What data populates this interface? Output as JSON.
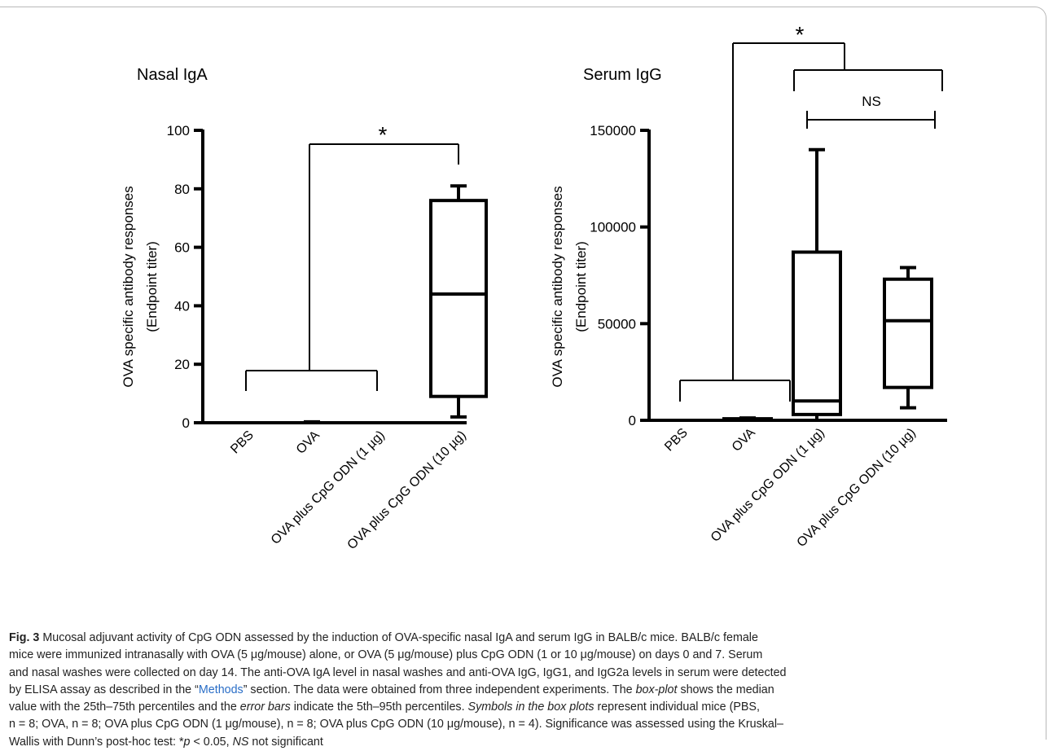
{
  "chart_data": [
    {
      "type": "box",
      "title": "Nasal IgA",
      "ylabel": [
        "OVA specific antibody responses",
        "(Endpoint titer)"
      ],
      "ylim": [
        0,
        100
      ],
      "yticks": [
        0,
        20,
        40,
        60,
        80,
        100
      ],
      "categories": [
        "PBS",
        "OVA",
        "OVA plus CpG ODN (1 µg)",
        "OVA plus CpG ODN (10 µg)"
      ],
      "boxes": [
        {
          "category": "PBS",
          "whisker_low": 0,
          "q1": 0,
          "median": 0,
          "q3": 0,
          "whisker_high": 0
        },
        {
          "category": "OVA",
          "whisker_low": 0,
          "q1": 0,
          "median": 0,
          "q3": 0,
          "whisker_high": 0.3
        },
        {
          "category": "OVA plus CpG ODN (1 µg)",
          "whisker_low": 0,
          "q1": 0,
          "median": 0,
          "q3": 0,
          "whisker_high": 0
        },
        {
          "category": "OVA plus CpG ODN (10 µg)",
          "whisker_low": 2,
          "q1": 9,
          "median": 44,
          "q3": 76,
          "whisker_high": 81
        }
      ],
      "annotations": [
        {
          "from": [
            0,
            2
          ],
          "to": [
            3
          ],
          "label": "*"
        }
      ]
    },
    {
      "type": "box",
      "title": "Serum IgG",
      "ylabel": [
        "OVA specific antibody responses",
        "(Endpoint titer)"
      ],
      "ylim": [
        0,
        150000
      ],
      "yticks": [
        0,
        50000,
        100000,
        150000
      ],
      "categories": [
        "PBS",
        "OVA",
        "OVA plus CpG ODN (1 µg)",
        "OVA plus CpG ODN (10 µg)"
      ],
      "boxes": [
        {
          "category": "PBS",
          "whisker_low": 0,
          "q1": 0,
          "median": 0,
          "q3": 0,
          "whisker_high": 0
        },
        {
          "category": "OVA",
          "whisker_low": 0,
          "q1": 200,
          "median": 500,
          "q3": 800,
          "whisker_high": 1200
        },
        {
          "category": "OVA plus CpG ODN (1 µg)",
          "whisker_low": 0,
          "q1": 3000,
          "median": 10000,
          "q3": 87000,
          "whisker_high": 140000
        },
        {
          "category": "OVA plus CpG ODN (10 µg)",
          "whisker_low": 6500,
          "q1": 17000,
          "median": 51500,
          "q3": 73000,
          "whisker_high": 79000
        }
      ],
      "annotations": [
        {
          "from": [
            0,
            1
          ],
          "to": [
            2,
            3
          ],
          "label": "*"
        },
        {
          "from": [
            2
          ],
          "to": [
            3
          ],
          "label": "NS"
        }
      ]
    }
  ],
  "caption": {
    "fig_label": "Fig. 3",
    "lines": [
      [
        {
          "t": "Mucosal adjuvant activity of CpG ODN assessed by the induction of OVA-specific nasal IgA and serum IgG in BALB/c mice. BALB/c female"
        }
      ],
      [
        {
          "t": "mice were immunized intranasally with OVA (5 μg/mouse) alone, or OVA (5 μg/mouse) plus CpG ODN (1 or 10 μg/mouse) on days 0 and 7. Serum"
        }
      ],
      [
        {
          "t": "and nasal washes were collected on day 14. The anti-OVA IgA level in nasal washes and anti-OVA IgG, IgG1, and IgG2a levels in serum were detected"
        }
      ],
      [
        {
          "t": "by ELISA assay as described in the “"
        },
        {
          "t": "Methods",
          "s": "link"
        },
        {
          "t": "” section. The data were obtained from three independent experiments. The "
        },
        {
          "t": "box-plot",
          "s": "i"
        },
        {
          "t": " shows the median"
        }
      ],
      [
        {
          "t": "value with the 25th–75th percentiles and the "
        },
        {
          "t": "error bars",
          "s": "i"
        },
        {
          "t": " indicate the 5th–95th percentiles. "
        },
        {
          "t": "Symbols in the box plots",
          "s": "i"
        },
        {
          "t": " represent individual mice (PBS,"
        }
      ],
      [
        {
          "t": "n = 8; OVA, n = 8; OVA plus CpG ODN (1 μg/mouse), n = 8; OVA plus CpG ODN (10 μg/mouse), n = 4). Significance was assessed using the Kruskal–"
        }
      ],
      [
        {
          "t": "Wallis with Dunn’s post-hoc test: *"
        },
        {
          "t": "p",
          "s": "i"
        },
        {
          "t": " < 0.05, "
        },
        {
          "t": "NS",
          "s": "i"
        },
        {
          "t": " not significant"
        }
      ]
    ]
  }
}
